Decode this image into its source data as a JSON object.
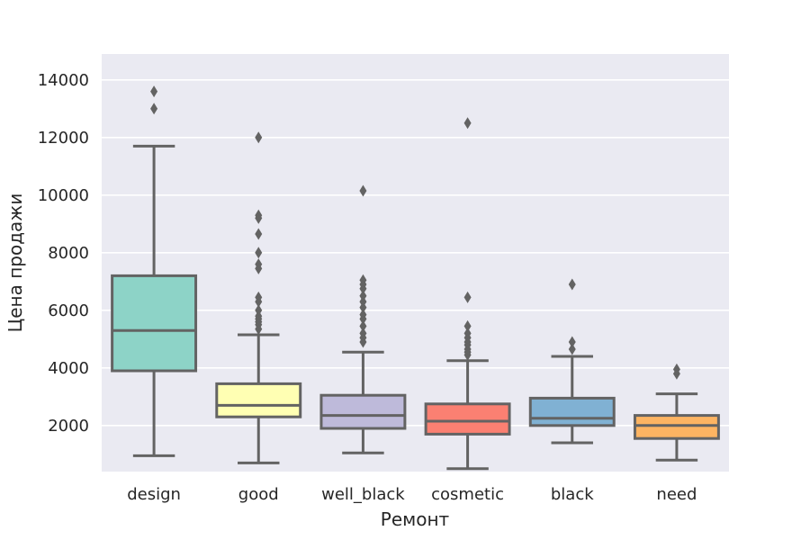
{
  "chart_data": {
    "type": "box",
    "xlabel": "Ремонт",
    "ylabel": "Цена продажи",
    "ylim": [
      400,
      14900
    ],
    "yticks": [
      2000,
      4000,
      6000,
      8000,
      10000,
      12000,
      14000
    ],
    "grid": true,
    "categories": [
      "design",
      "good",
      "well_black",
      "cosmetic",
      "black",
      "need"
    ],
    "colors": [
      "#8dd3c7",
      "#ffffb3",
      "#bebada",
      "#fb8072",
      "#80b1d3",
      "#fdb462"
    ],
    "line_color": "#636363",
    "background": "#eaeaf2",
    "boxes": [
      {
        "whislo": 950,
        "q1": 3900,
        "med": 5300,
        "q3": 7200,
        "whishi": 11700,
        "fliers": [
          13000,
          13600
        ]
      },
      {
        "whislo": 700,
        "q1": 2300,
        "med": 2700,
        "q3": 3450,
        "whishi": 5150,
        "fliers": [
          5350,
          5500,
          5600,
          5700,
          5800,
          6000,
          6300,
          6450,
          7450,
          7600,
          8000,
          8650,
          9200,
          9300,
          12000
        ]
      },
      {
        "whislo": 1050,
        "q1": 1900,
        "med": 2350,
        "q3": 3050,
        "whishi": 4550,
        "fliers": [
          4900,
          5050,
          5200,
          5450,
          5700,
          5850,
          6100,
          6300,
          6500,
          6750,
          6900,
          7050,
          10150
        ]
      },
      {
        "whislo": 500,
        "q1": 1700,
        "med": 2150,
        "q3": 2750,
        "whishi": 4250,
        "fliers": [
          4450,
          4550,
          4650,
          4800,
          4900,
          5050,
          5200,
          5450,
          6450,
          12500
        ]
      },
      {
        "whislo": 1400,
        "q1": 2000,
        "med": 2250,
        "q3": 2950,
        "whishi": 4400,
        "fliers": [
          4650,
          4900,
          6900
        ]
      },
      {
        "whislo": 800,
        "q1": 1550,
        "med": 2000,
        "q3": 2350,
        "whishi": 3100,
        "fliers": [
          3800,
          3950
        ]
      }
    ]
  }
}
